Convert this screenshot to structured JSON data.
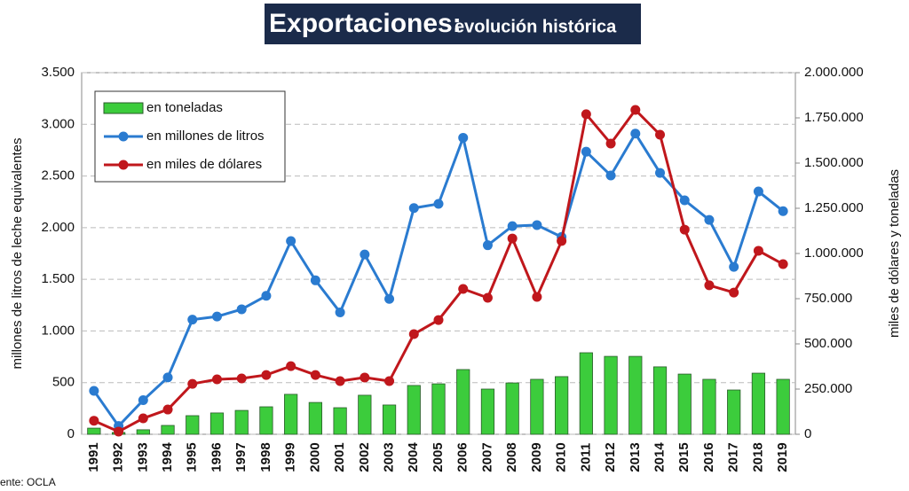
{
  "chart_data": {
    "type": "bar-line",
    "title": "Exportaciones:",
    "subtitle": "evolución histórica",
    "ylabel": "millones de litros de leche equivalentes",
    "y2label": "miles de dólares y toneladas",
    "source": "ente: OCLA",
    "categories": [
      "1991",
      "1992",
      "1993",
      "1994",
      "1995",
      "1996",
      "1997",
      "1998",
      "1999",
      "2000",
      "2001",
      "2002",
      "2003",
      "2004",
      "2005",
      "2006",
      "2007",
      "2008",
      "2009",
      "2010",
      "2011",
      "2012",
      "2013",
      "2014",
      "2015",
      "2016",
      "2017",
      "2018",
      "2019"
    ],
    "series": [
      {
        "name": "en toneladas",
        "kind": "bar",
        "axis": "y2",
        "color": "#3ccc3c",
        "values": [
          34000,
          10000,
          25000,
          49000,
          103000,
          118000,
          132000,
          152000,
          221000,
          176000,
          147000,
          216000,
          162000,
          270000,
          279000,
          358000,
          250000,
          284000,
          304000,
          319000,
          451000,
          431000,
          431000,
          373000,
          333000,
          304000,
          245000,
          338000,
          304000
        ]
      },
      {
        "name": "en millones de litros",
        "kind": "line",
        "axis": "y",
        "color": "#2a7bd0",
        "values": [
          420,
          80,
          330,
          550,
          1110,
          1140,
          1210,
          1340,
          1870,
          1490,
          1180,
          1740,
          1310,
          2190,
          2230,
          2870,
          1830,
          2015,
          2025,
          1910,
          2735,
          2505,
          2910,
          2530,
          2265,
          2075,
          1620,
          2350,
          2160
        ]
      },
      {
        "name": "en miles de dólares",
        "kind": "line",
        "axis": "y2",
        "color": "#c0171c",
        "values": [
          75000,
          15000,
          88000,
          137000,
          279000,
          304000,
          309000,
          328000,
          377000,
          328000,
          294000,
          314000,
          294000,
          554000,
          632000,
          804000,
          755000,
          1083000,
          760000,
          1069000,
          1770000,
          1608000,
          1794000,
          1657000,
          1132000,
          824000,
          784000,
          1015000,
          941000
        ]
      }
    ],
    "ylim": [
      0,
      3500
    ],
    "yticks": [
      0,
      500,
      {
        "value": 1000,
        "label": "1.000"
      },
      {
        "value": 1500,
        "label": "1.500"
      },
      {
        "value": 2000,
        "label": "2.000"
      },
      {
        "value": 2500,
        "label": "2.500"
      },
      {
        "value": 3000,
        "label": "3.000"
      },
      {
        "value": 3500,
        "label": "3.500"
      }
    ],
    "y2lim": [
      0,
      2000000
    ],
    "y2ticks": [
      0,
      {
        "value": 250000,
        "label": "250.000"
      },
      {
        "value": 500000,
        "label": "500.000"
      },
      {
        "value": 750000,
        "label": "750.000"
      },
      {
        "value": 1000000,
        "label": "1.000.000"
      },
      {
        "value": 1250000,
        "label": "1.250.000"
      },
      {
        "value": 1500000,
        "label": "1.500.000"
      },
      {
        "value": 1750000,
        "label": "1.750.000"
      },
      {
        "value": 2000000,
        "label": "2.000.000"
      }
    ],
    "grid": true,
    "legend": "upper left"
  }
}
